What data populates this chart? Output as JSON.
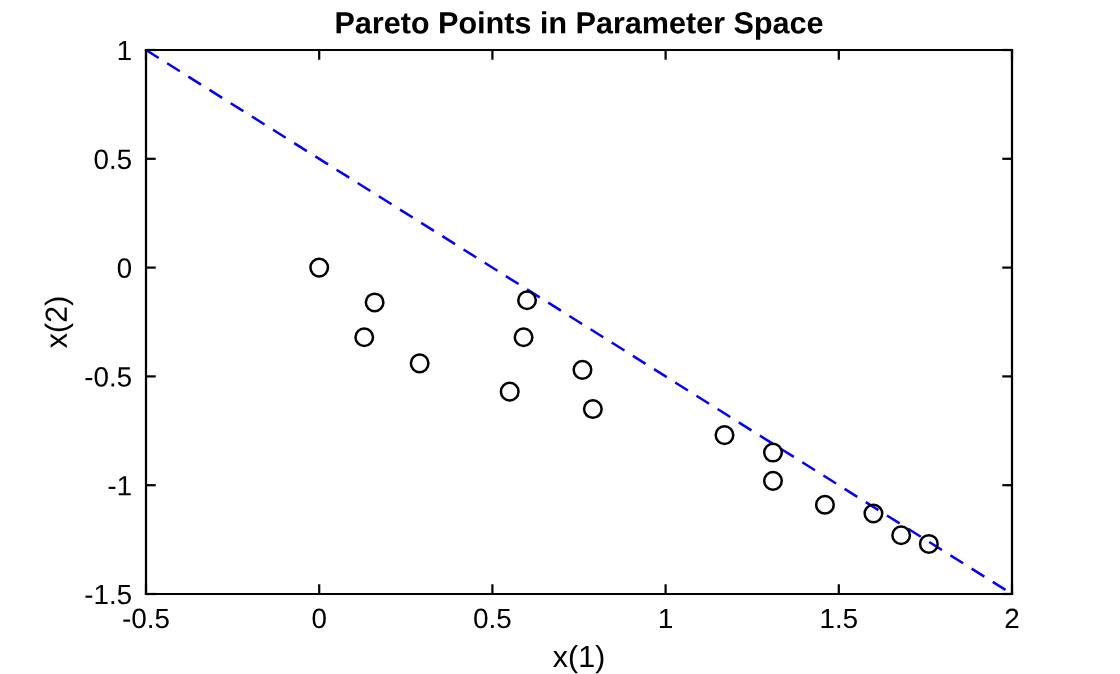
{
  "chart_data": {
    "type": "scatter",
    "title": "Pareto Points in Parameter Space",
    "xlabel": "x(1)",
    "ylabel": "x(2)",
    "xlim": [
      -0.5,
      2
    ],
    "ylim": [
      -1.5,
      1
    ],
    "xticks": [
      -0.5,
      0,
      0.5,
      1,
      1.5,
      2
    ],
    "yticks": [
      -1.5,
      -1,
      -0.5,
      0,
      0.5,
      1
    ],
    "grid": false,
    "legend": false,
    "series": [
      {
        "color": "#000000",
        "marker": "circle",
        "x": [
          0,
          0.16,
          0.13,
          0.29,
          0.55,
          0.6,
          0.59,
          0.76,
          0.79,
          1.17,
          1.31,
          1.31,
          1.46,
          1.6,
          1.68,
          1.76
        ],
        "values": [
          0,
          -0.16,
          -0.32,
          -0.44,
          -0.57,
          -0.15,
          -0.32,
          -0.47,
          -0.65,
          -0.77,
          -0.85,
          -0.98,
          -1.09,
          -1.13,
          -1.23,
          -1.27
        ]
      },
      {
        "type": "line",
        "color": "#0000ff",
        "line_style": "dashed",
        "marker": "none",
        "x": [
          -0.5,
          2
        ],
        "values": [
          1,
          -1.5
        ]
      }
    ]
  }
}
